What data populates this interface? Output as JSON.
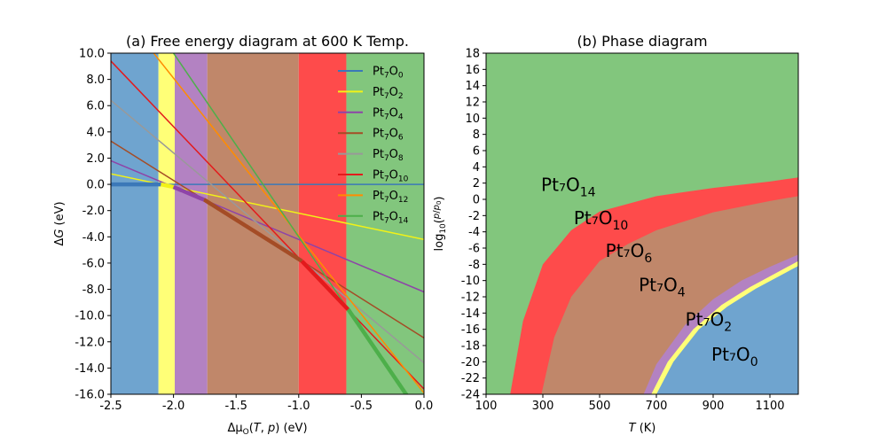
{
  "chart_data": [
    {
      "type": "line",
      "title": "(a) Free energy diagram at 600 K Temp.",
      "xlabel": "Δμ_O(T, p) (eV)",
      "ylabel": "ΔG (eV)",
      "xlim": [
        -2.5,
        0.0
      ],
      "ylim": [
        -16.0,
        10.0
      ],
      "xticks": [
        "-2.5",
        "-2.0",
        "-1.5",
        "-1.0",
        "-0.5",
        "0.0"
      ],
      "yticks": [
        "-16.0",
        "-14.0",
        "-12.0",
        "-10.0",
        "-8.0",
        "-6.0",
        "-4.0",
        "-2.0",
        "0.0",
        "2.0",
        "4.0",
        "6.0",
        "8.0",
        "10.0"
      ],
      "legend_position": "top-right",
      "regions": [
        {
          "phase": "Pt7O0",
          "from": -2.5,
          "to": -2.12,
          "color": "#6fa4cf"
        },
        {
          "phase": "Pt7O2",
          "from": -2.12,
          "to": -1.99,
          "color": "#ffff77"
        },
        {
          "phase": "Pt7O4",
          "from": -1.99,
          "to": -1.73,
          "color": "#b382c2"
        },
        {
          "phase": "Pt7O6",
          "from": -1.73,
          "to": -1.0,
          "color": "#c0876a"
        },
        {
          "phase": "Pt7O10",
          "from": -1.0,
          "to": -0.62,
          "color": "#fe4b4b"
        },
        {
          "phase": "Pt7O14",
          "from": -0.62,
          "to": 0.0,
          "color": "#82c67d"
        }
      ],
      "series": [
        {
          "name": "Pt₇O₀",
          "sub": "0",
          "color": "#3b78b8",
          "x": [
            -2.5,
            0.0
          ],
          "y": [
            0.0,
            0.0
          ]
        },
        {
          "name": "Pt₇O₂",
          "sub": "2",
          "color": "#f2f217",
          "x": [
            -2.5,
            0.0
          ],
          "y": [
            0.8,
            -4.2
          ]
        },
        {
          "name": "Pt₇O₄",
          "sub": "4",
          "color": "#8e44a8",
          "x": [
            -2.5,
            0.0
          ],
          "y": [
            1.8,
            -8.2
          ]
        },
        {
          "name": "Pt₇O₆",
          "sub": "6",
          "color": "#a44c26",
          "x": [
            -2.5,
            0.0
          ],
          "y": [
            3.3,
            -11.7
          ]
        },
        {
          "name": "Pt₇O₈",
          "sub": "8",
          "color": "#999999",
          "x": [
            -2.5,
            0.0
          ],
          "y": [
            6.4,
            -13.6
          ]
        },
        {
          "name": "Pt₇O₁₀",
          "sub": "10",
          "color": "#e31a1c",
          "x": [
            -2.5,
            0.0
          ],
          "y": [
            9.4,
            -15.6
          ]
        },
        {
          "name": "Pt₇O₁₂",
          "sub": "12",
          "color": "#ff8c00",
          "x": [
            -2.5,
            0.0
          ],
          "y": [
            14.1,
            -15.9
          ]
        },
        {
          "name": "Pt₇O₁₄",
          "sub": "14",
          "color": "#4daf4a",
          "x": [
            -2.5,
            0.0
          ],
          "y": [
            17.0,
            -18.0
          ]
        }
      ]
    },
    {
      "type": "area",
      "title": "(b) Phase diagram",
      "xlabel": "T (K)",
      "ylabel": "log10(p/p0)",
      "xlim": [
        100,
        1200
      ],
      "ylim": [
        -24,
        18
      ],
      "xticks": [
        "100",
        "300",
        "500",
        "700",
        "900",
        "1100"
      ],
      "yticks": [
        "-24",
        "-22",
        "-20",
        "-18",
        "-16",
        "-14",
        "-12",
        "-10",
        "-8",
        "-6",
        "-4",
        "-2",
        "0",
        "2",
        "4",
        "6",
        "8",
        "10",
        "12",
        "14",
        "16",
        "18"
      ],
      "regions": [
        {
          "phase": "Pt₇O₁₄",
          "sub": "14",
          "color": "#82c67d",
          "label_color": "#4daf4a",
          "label_x": 390,
          "label_y": 1.8
        },
        {
          "phase": "Pt₇O₁₀",
          "sub": "10",
          "color": "#fe4b4b",
          "label_color": "#e31a1c",
          "label_x": 505,
          "label_y": -2.3
        },
        {
          "phase": "Pt₇O₆",
          "sub": "6",
          "color": "#c0876a",
          "label_color": "#a44c26",
          "label_x": 603,
          "label_y": -6.3
        },
        {
          "phase": "Pt₇O₄",
          "sub": "4",
          "color": "#b382c2",
          "label_color": "#8e44a8",
          "label_x": 720,
          "label_y": -10.5
        },
        {
          "phase": "Pt₇O₂",
          "sub": "2",
          "color": "#ffff77",
          "label_color": "#f2f217",
          "label_x": 884,
          "label_y": -14.8
        },
        {
          "phase": "Pt₇O₀",
          "sub": "0",
          "color": "#6fa4cf",
          "label_color": "#3b78b8",
          "label_x": 976,
          "label_y": -19.1
        }
      ],
      "boundaries": {
        "O14_O10": [
          [
            185,
            -24
          ],
          [
            230,
            -15
          ],
          [
            300,
            -8
          ],
          [
            400,
            -3.8
          ],
          [
            500,
            -1.5
          ],
          [
            700,
            0.4
          ],
          [
            900,
            1.4
          ],
          [
            1100,
            2.2
          ],
          [
            1200,
            2.7
          ]
        ],
        "O10_O6": [
          [
            295,
            -24
          ],
          [
            340,
            -17
          ],
          [
            400,
            -12
          ],
          [
            500,
            -7.6
          ],
          [
            600,
            -5.5
          ],
          [
            700,
            -3.8
          ],
          [
            900,
            -1.6
          ],
          [
            1100,
            -0.2
          ],
          [
            1200,
            0.4
          ]
        ],
        "O6_O4": [
          [
            655,
            -24
          ],
          [
            700,
            -20.3
          ],
          [
            800,
            -15.5
          ],
          [
            900,
            -12.3
          ],
          [
            1000,
            -10.0
          ],
          [
            1100,
            -8.3
          ],
          [
            1200,
            -6.8
          ]
        ],
        "O4_O2": [
          [
            682,
            -24
          ],
          [
            740,
            -20
          ],
          [
            830,
            -16
          ],
          [
            930,
            -13
          ],
          [
            1030,
            -10.8
          ],
          [
            1200,
            -7.6
          ]
        ],
        "O2_O0": [
          [
            700,
            -24
          ],
          [
            760,
            -20
          ],
          [
            850,
            -16
          ],
          [
            950,
            -13.2
          ],
          [
            1050,
            -11
          ],
          [
            1200,
            -8.2
          ]
        ]
      }
    }
  ]
}
